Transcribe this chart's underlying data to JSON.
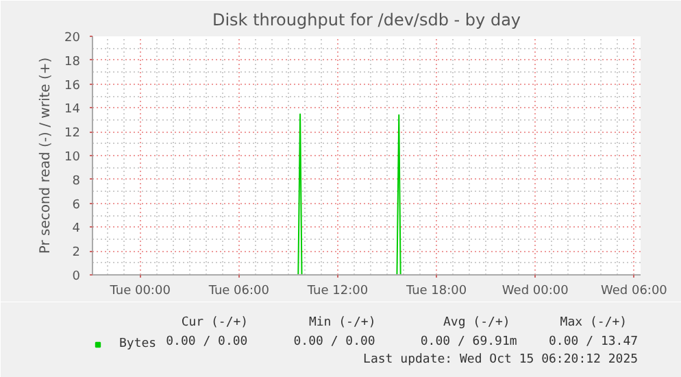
{
  "chart_data": {
    "type": "line",
    "title": "Disk throughput for /dev/sdb - by day",
    "ylabel": "Pr second read (-) / write (+)",
    "x": [
      "2025-10-13T21:06",
      "2025-10-14T09:36",
      "2025-10-14T09:43",
      "2025-10-14T09:49",
      "2025-10-14T15:36",
      "2025-10-14T15:43",
      "2025-10-14T15:49",
      "2025-10-15T06:24"
    ],
    "series": [
      {
        "name": "Bytes",
        "color": "#00cc00",
        "values": [
          0,
          0,
          13.47,
          0,
          0,
          13.4,
          0,
          0
        ]
      }
    ],
    "xlim": [
      "2025-10-13T21:06",
      "2025-10-15T06:24"
    ],
    "xticks": [
      {
        "value": "2025-10-14T00:00",
        "label": "Tue 00:00"
      },
      {
        "value": "2025-10-14T06:00",
        "label": "Tue 06:00"
      },
      {
        "value": "2025-10-14T12:00",
        "label": "Tue 12:00"
      },
      {
        "value": "2025-10-14T18:00",
        "label": "Tue 18:00"
      },
      {
        "value": "2025-10-15T00:00",
        "label": "Wed 00:00"
      },
      {
        "value": "2025-10-15T06:00",
        "label": "Wed 06:00"
      }
    ],
    "ylim": [
      0,
      20
    ],
    "yticks": [
      0,
      2,
      4,
      6,
      8,
      10,
      12,
      14,
      16,
      18,
      20
    ],
    "grid": true,
    "legend": "bottom left",
    "annotations": [
      "Cur (-/+)",
      "Min (-/+)",
      "Avg (-/+)",
      "Max (-/+)",
      "0.00 /  0.00",
      "0.00 /  0.00",
      "0.00 / 69.91m",
      "0.00 / 13.47",
      "Last update: Wed Oct 15 06:20:12 2025"
    ]
  }
}
